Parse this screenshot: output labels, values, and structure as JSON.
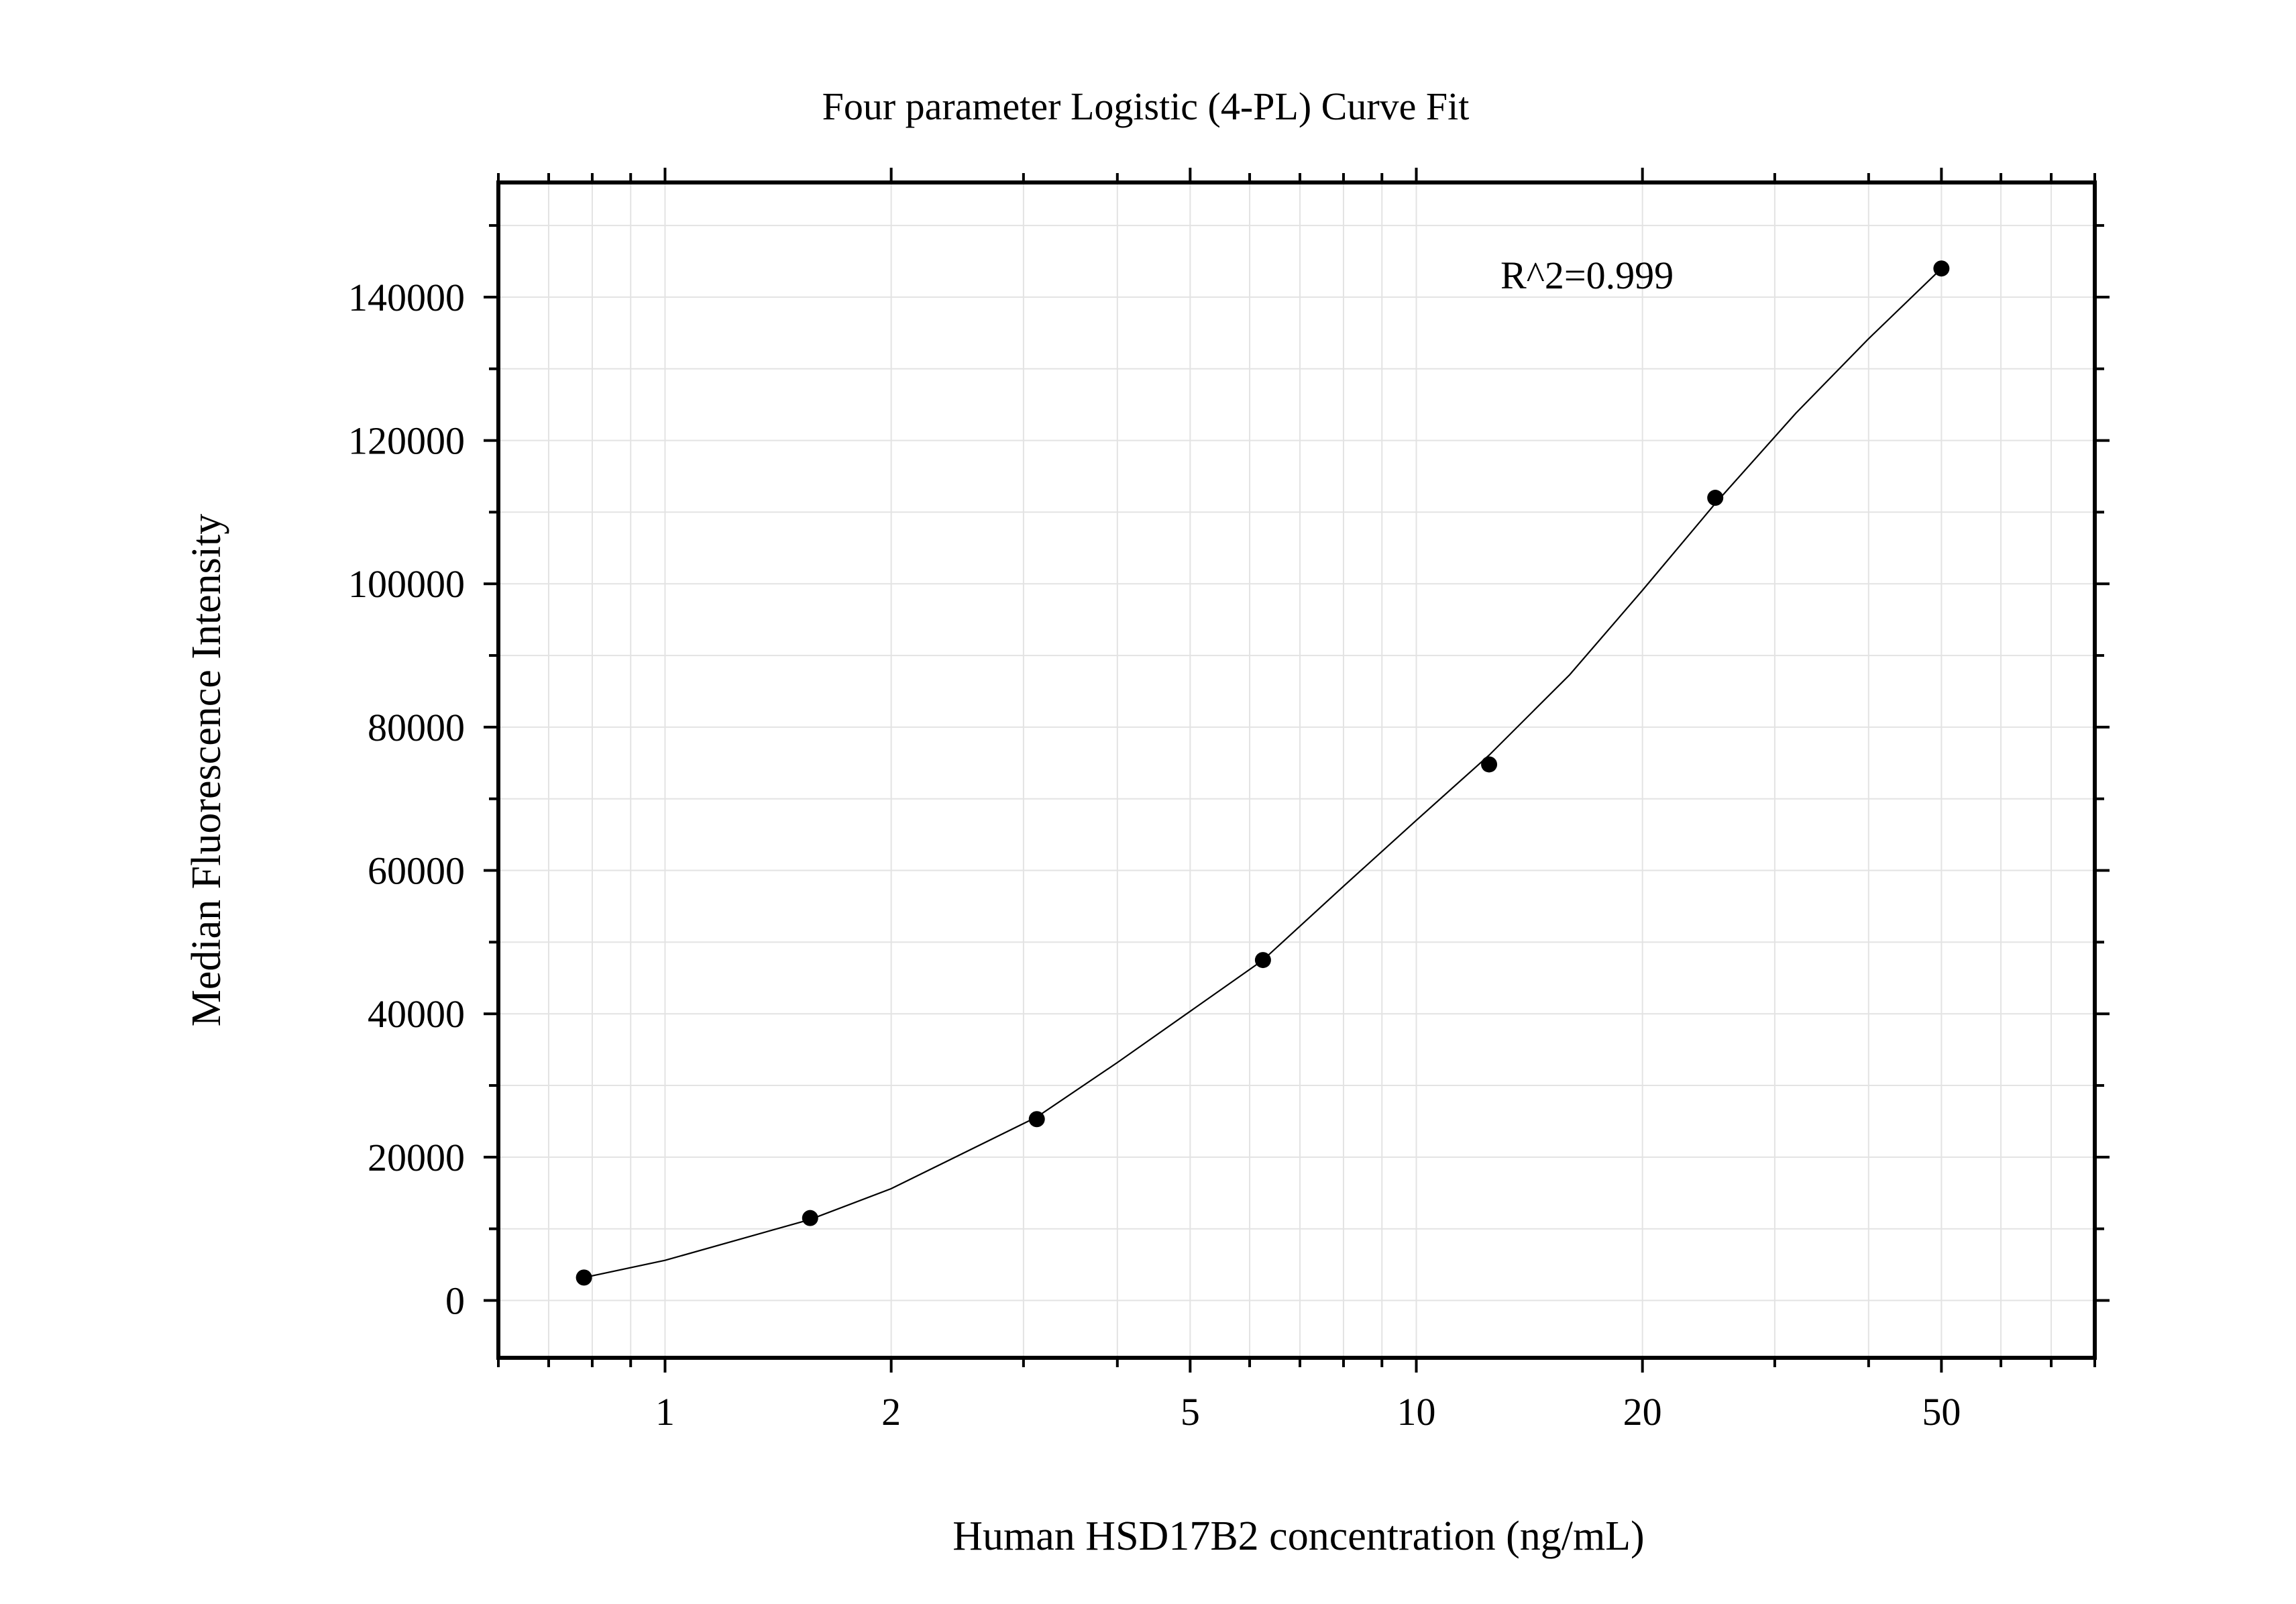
{
  "chart_data": {
    "type": "scatter",
    "title": "Four parameter Logistic (4-PL) Curve Fit",
    "xlabel": "Human HSD17B2 concentration (ng/mL)",
    "ylabel": "Median Fluorescence Intensity",
    "x_scale": "log",
    "xlim": [
      0.6,
      80
    ],
    "ylim": [
      -8000,
      156000
    ],
    "x_ticks": [
      1,
      2,
      5,
      10,
      20,
      50
    ],
    "x_tick_labels": [
      "1",
      "2",
      "5",
      "10",
      "20",
      "50"
    ],
    "y_ticks": [
      0,
      20000,
      40000,
      60000,
      80000,
      100000,
      120000,
      140000
    ],
    "y_tick_labels": [
      "0",
      "20000",
      "40000",
      "60000",
      "80000",
      "100000",
      "120000",
      "140000"
    ],
    "grid": true,
    "annotation": "R^2=0.999",
    "series": [
      {
        "x": [
          0.78,
          1.56,
          3.125,
          6.25,
          12.5,
          25,
          50
        ],
        "y": [
          3200,
          11500,
          25300,
          47500,
          74800,
          112000,
          144000
        ]
      }
    ],
    "fit_curve": {
      "model": "4PL",
      "x": [
        0.78,
        1.0,
        1.56,
        2.0,
        3.125,
        4.0,
        6.25,
        8.0,
        10.0,
        12.5,
        16.0,
        20.0,
        25.0,
        32.0,
        40.0,
        50.0
      ],
      "y": [
        3200,
        5600,
        11300,
        15600,
        25600,
        33200,
        47500,
        57800,
        67000,
        76100,
        87300,
        99100,
        111200,
        123800,
        134200,
        144000
      ]
    }
  }
}
